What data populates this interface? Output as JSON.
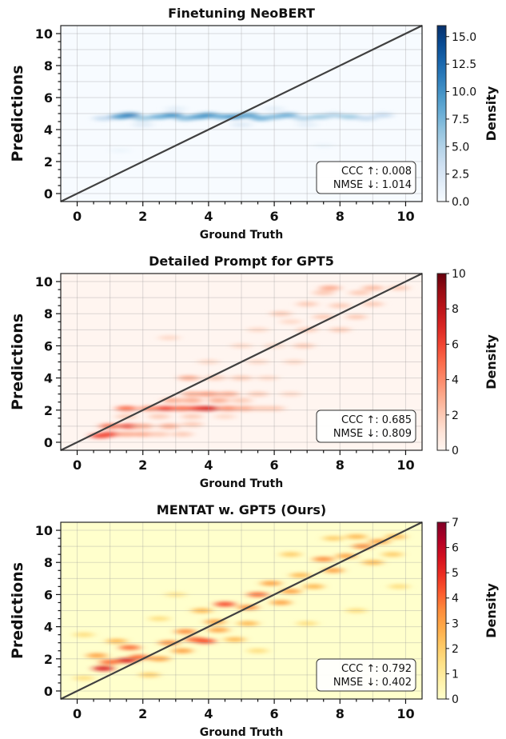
{
  "chart_data": [
    {
      "type": "heatmap",
      "title": "Finetuning NeoBERT",
      "xlabel": "Ground Truth",
      "ylabel": "Predictions",
      "xlim": [
        -0.5,
        10.5
      ],
      "ylim": [
        -0.5,
        10.5
      ],
      "xticks": [
        0,
        2,
        4,
        6,
        8,
        10
      ],
      "yticks": [
        0,
        2,
        4,
        6,
        8,
        10
      ],
      "grid": true,
      "identity_line": true,
      "colormap": "Blues",
      "colorbar": {
        "label": "Density",
        "min": 0,
        "max": 16,
        "ticks": [
          0.0,
          2.5,
          5.0,
          7.5,
          10.0,
          12.5,
          15.0
        ],
        "tick_labels": [
          "0.0",
          "2.5",
          "5.0",
          "7.5",
          "10.0",
          "12.5",
          "15.0"
        ]
      },
      "annotation": [
        "CCC ↑: 0.008",
        "NMSE ↓: 1.014"
      ],
      "density": [
        {
          "x": 0.8,
          "y": 4.7,
          "d": 4
        },
        {
          "x": 1.3,
          "y": 4.8,
          "d": 9
        },
        {
          "x": 1.6,
          "y": 4.9,
          "d": 11
        },
        {
          "x": 2.0,
          "y": 4.7,
          "d": 6
        },
        {
          "x": 2.5,
          "y": 4.8,
          "d": 8
        },
        {
          "x": 2.9,
          "y": 4.9,
          "d": 10
        },
        {
          "x": 3.3,
          "y": 4.7,
          "d": 7
        },
        {
          "x": 3.7,
          "y": 4.8,
          "d": 9
        },
        {
          "x": 4.0,
          "y": 4.9,
          "d": 10
        },
        {
          "x": 4.4,
          "y": 4.8,
          "d": 8
        },
        {
          "x": 4.8,
          "y": 4.8,
          "d": 10
        },
        {
          "x": 5.2,
          "y": 4.9,
          "d": 9
        },
        {
          "x": 5.6,
          "y": 4.7,
          "d": 8
        },
        {
          "x": 6.0,
          "y": 4.8,
          "d": 7
        },
        {
          "x": 6.4,
          "y": 4.9,
          "d": 8
        },
        {
          "x": 6.9,
          "y": 4.7,
          "d": 5
        },
        {
          "x": 7.4,
          "y": 4.8,
          "d": 6
        },
        {
          "x": 7.8,
          "y": 4.9,
          "d": 5
        },
        {
          "x": 8.3,
          "y": 4.8,
          "d": 6
        },
        {
          "x": 8.8,
          "y": 4.7,
          "d": 4
        },
        {
          "x": 9.3,
          "y": 4.9,
          "d": 4
        },
        {
          "x": 2.0,
          "y": 4.3,
          "d": 2
        },
        {
          "x": 5.0,
          "y": 4.3,
          "d": 2
        },
        {
          "x": 7.0,
          "y": 4.3,
          "d": 1.5
        },
        {
          "x": 3.0,
          "y": 5.3,
          "d": 1.5
        },
        {
          "x": 6.0,
          "y": 5.3,
          "d": 1.5
        },
        {
          "x": 1.3,
          "y": 2.7,
          "d": 0.8
        },
        {
          "x": 7.5,
          "y": 3.0,
          "d": 0.8
        }
      ]
    },
    {
      "type": "heatmap",
      "title": "Detailed Prompt for GPT5",
      "xlabel": "Ground Truth",
      "ylabel": "Predictions",
      "xlim": [
        -0.5,
        10.5
      ],
      "ylim": [
        -0.5,
        10.5
      ],
      "xticks": [
        0,
        2,
        4,
        6,
        8,
        10
      ],
      "yticks": [
        0,
        2,
        4,
        6,
        8,
        10
      ],
      "grid": true,
      "identity_line": true,
      "colormap": "Reds",
      "colorbar": {
        "label": "Density",
        "min": 0,
        "max": 10,
        "ticks": [
          0,
          2,
          4,
          6,
          8,
          10
        ],
        "tick_labels": [
          "0",
          "2",
          "4",
          "6",
          "8",
          "10"
        ]
      },
      "annotation": [
        "CCC ↑: 0.685",
        "NMSE ↓: 0.809"
      ],
      "density": [
        {
          "x": 0.7,
          "y": 0.4,
          "d": 6
        },
        {
          "x": 1.0,
          "y": 0.5,
          "d": 6
        },
        {
          "x": 1.0,
          "y": 1.0,
          "d": 5
        },
        {
          "x": 1.6,
          "y": 1.0,
          "d": 6
        },
        {
          "x": 1.5,
          "y": 0.5,
          "d": 3
        },
        {
          "x": 2.0,
          "y": 0.5,
          "d": 3
        },
        {
          "x": 2.5,
          "y": 0.5,
          "d": 2
        },
        {
          "x": 3.2,
          "y": 0.5,
          "d": 2
        },
        {
          "x": 2.0,
          "y": 1.0,
          "d": 3
        },
        {
          "x": 2.8,
          "y": 1.0,
          "d": 3
        },
        {
          "x": 3.5,
          "y": 1.1,
          "d": 2
        },
        {
          "x": 1.5,
          "y": 1.6,
          "d": 2
        },
        {
          "x": 2.5,
          "y": 1.6,
          "d": 2
        },
        {
          "x": 3.5,
          "y": 1.6,
          "d": 2
        },
        {
          "x": 4.5,
          "y": 1.6,
          "d": 1.5
        },
        {
          "x": 1.5,
          "y": 2.1,
          "d": 5
        },
        {
          "x": 2.2,
          "y": 2.1,
          "d": 4
        },
        {
          "x": 2.7,
          "y": 2.1,
          "d": 6
        },
        {
          "x": 3.2,
          "y": 2.1,
          "d": 5
        },
        {
          "x": 3.7,
          "y": 2.1,
          "d": 6
        },
        {
          "x": 4.0,
          "y": 2.1,
          "d": 7
        },
        {
          "x": 4.6,
          "y": 2.1,
          "d": 4
        },
        {
          "x": 5.1,
          "y": 2.1,
          "d": 3
        },
        {
          "x": 5.6,
          "y": 2.1,
          "d": 2
        },
        {
          "x": 6.0,
          "y": 2.1,
          "d": 2
        },
        {
          "x": 2.9,
          "y": 2.6,
          "d": 3
        },
        {
          "x": 3.5,
          "y": 2.6,
          "d": 3
        },
        {
          "x": 4.3,
          "y": 2.6,
          "d": 3
        },
        {
          "x": 5.0,
          "y": 2.6,
          "d": 2
        },
        {
          "x": 3.5,
          "y": 3.0,
          "d": 3
        },
        {
          "x": 4.0,
          "y": 3.0,
          "d": 3.5
        },
        {
          "x": 4.6,
          "y": 3.0,
          "d": 3
        },
        {
          "x": 5.5,
          "y": 3.0,
          "d": 2
        },
        {
          "x": 6.5,
          "y": 3.0,
          "d": 1.5
        },
        {
          "x": 3.4,
          "y": 4.0,
          "d": 3
        },
        {
          "x": 4.2,
          "y": 4.0,
          "d": 2
        },
        {
          "x": 5.0,
          "y": 4.0,
          "d": 2
        },
        {
          "x": 5.8,
          "y": 4.0,
          "d": 1.5
        },
        {
          "x": 4.0,
          "y": 5.0,
          "d": 1.5
        },
        {
          "x": 5.5,
          "y": 5.0,
          "d": 1.5
        },
        {
          "x": 6.6,
          "y": 5.0,
          "d": 1.5
        },
        {
          "x": 5.0,
          "y": 6.0,
          "d": 1.5
        },
        {
          "x": 6.0,
          "y": 6.0,
          "d": 1.5
        },
        {
          "x": 6.9,
          "y": 6.0,
          "d": 2
        },
        {
          "x": 2.8,
          "y": 6.5,
          "d": 1.5
        },
        {
          "x": 5.5,
          "y": 7.0,
          "d": 1.5
        },
        {
          "x": 7.0,
          "y": 7.0,
          "d": 2
        },
        {
          "x": 8.0,
          "y": 7.0,
          "d": 2
        },
        {
          "x": 6.5,
          "y": 7.5,
          "d": 1.5
        },
        {
          "x": 7.5,
          "y": 7.8,
          "d": 2
        },
        {
          "x": 8.5,
          "y": 7.8,
          "d": 2
        },
        {
          "x": 6.2,
          "y": 8.0,
          "d": 2
        },
        {
          "x": 7.0,
          "y": 8.6,
          "d": 2
        },
        {
          "x": 8.0,
          "y": 8.5,
          "d": 2
        },
        {
          "x": 9.0,
          "y": 8.6,
          "d": 2
        },
        {
          "x": 7.5,
          "y": 9.3,
          "d": 2
        },
        {
          "x": 8.6,
          "y": 9.3,
          "d": 2
        },
        {
          "x": 9.0,
          "y": 9.6,
          "d": 2.5
        },
        {
          "x": 7.7,
          "y": 9.6,
          "d": 3
        },
        {
          "x": 9.8,
          "y": 9.6,
          "d": 2
        }
      ]
    },
    {
      "type": "heatmap",
      "title": "MENTAT w. GPT5 (Ours)",
      "xlabel": "Ground Truth",
      "ylabel": "Predictions",
      "xlim": [
        -0.5,
        10.5
      ],
      "ylim": [
        -0.5,
        10.5
      ],
      "xticks": [
        0,
        2,
        4,
        6,
        8,
        10
      ],
      "yticks": [
        0,
        2,
        4,
        6,
        8,
        10
      ],
      "grid": true,
      "identity_line": true,
      "colormap": "YlOrRd",
      "colorbar": {
        "label": "Density",
        "min": 0,
        "max": 7,
        "ticks": [
          0,
          1,
          2,
          3,
          4,
          5,
          6,
          7
        ],
        "tick_labels": [
          "0",
          "1",
          "2",
          "3",
          "4",
          "5",
          "6",
          "7"
        ]
      },
      "annotation": [
        "CCC ↑: 0.792",
        "NMSE ↓: 0.402"
      ],
      "density": [
        {
          "x": 0.8,
          "y": 1.4,
          "d": 5.5
        },
        {
          "x": 1.5,
          "y": 1.9,
          "d": 5.5
        },
        {
          "x": 1.0,
          "y": 1.8,
          "d": 4
        },
        {
          "x": 1.6,
          "y": 2.7,
          "d": 4
        },
        {
          "x": 1.9,
          "y": 2.1,
          "d": 4
        },
        {
          "x": 1.2,
          "y": 3.1,
          "d": 2.5
        },
        {
          "x": 0.6,
          "y": 2.2,
          "d": 3
        },
        {
          "x": 0.2,
          "y": 3.5,
          "d": 1.5
        },
        {
          "x": 0.2,
          "y": 0.8,
          "d": 1.5
        },
        {
          "x": 2.2,
          "y": 1.0,
          "d": 2
        },
        {
          "x": 2.5,
          "y": 2.0,
          "d": 3
        },
        {
          "x": 2.8,
          "y": 3.0,
          "d": 3.5
        },
        {
          "x": 3.2,
          "y": 2.5,
          "d": 3
        },
        {
          "x": 3.6,
          "y": 3.2,
          "d": 4
        },
        {
          "x": 3.9,
          "y": 3.1,
          "d": 4.5
        },
        {
          "x": 3.3,
          "y": 3.7,
          "d": 3.5
        },
        {
          "x": 4.3,
          "y": 3.8,
          "d": 3
        },
        {
          "x": 4.2,
          "y": 4.3,
          "d": 3
        },
        {
          "x": 4.8,
          "y": 3.2,
          "d": 2.5
        },
        {
          "x": 4.5,
          "y": 5.4,
          "d": 4.5
        },
        {
          "x": 5.2,
          "y": 5.2,
          "d": 3.5
        },
        {
          "x": 3.8,
          "y": 5.0,
          "d": 2.5
        },
        {
          "x": 5.5,
          "y": 6.0,
          "d": 4
        },
        {
          "x": 5.2,
          "y": 4.2,
          "d": 2.5
        },
        {
          "x": 6.2,
          "y": 5.5,
          "d": 3
        },
        {
          "x": 5.9,
          "y": 6.7,
          "d": 3
        },
        {
          "x": 6.5,
          "y": 6.2,
          "d": 3
        },
        {
          "x": 6.8,
          "y": 7.2,
          "d": 2.5
        },
        {
          "x": 7.2,
          "y": 6.5,
          "d": 2.5
        },
        {
          "x": 7.5,
          "y": 8.2,
          "d": 3.5
        },
        {
          "x": 7.8,
          "y": 7.5,
          "d": 3
        },
        {
          "x": 8.2,
          "y": 8.4,
          "d": 3
        },
        {
          "x": 8.7,
          "y": 9.0,
          "d": 3.5
        },
        {
          "x": 9.0,
          "y": 8.0,
          "d": 2.5
        },
        {
          "x": 9.2,
          "y": 9.3,
          "d": 3
        },
        {
          "x": 8.5,
          "y": 9.6,
          "d": 2.5
        },
        {
          "x": 9.7,
          "y": 9.6,
          "d": 2.5
        },
        {
          "x": 9.6,
          "y": 8.5,
          "d": 2
        },
        {
          "x": 7.8,
          "y": 9.5,
          "d": 2
        },
        {
          "x": 6.5,
          "y": 8.5,
          "d": 2
        },
        {
          "x": 9.8,
          "y": 6.5,
          "d": 1.5
        },
        {
          "x": 8.5,
          "y": 5.0,
          "d": 1.5
        },
        {
          "x": 7.0,
          "y": 4.2,
          "d": 1.5
        },
        {
          "x": 5.5,
          "y": 2.5,
          "d": 1.5
        },
        {
          "x": 2.5,
          "y": 4.5,
          "d": 1.5
        },
        {
          "x": 3.0,
          "y": 6.0,
          "d": 1.2
        }
      ]
    }
  ]
}
